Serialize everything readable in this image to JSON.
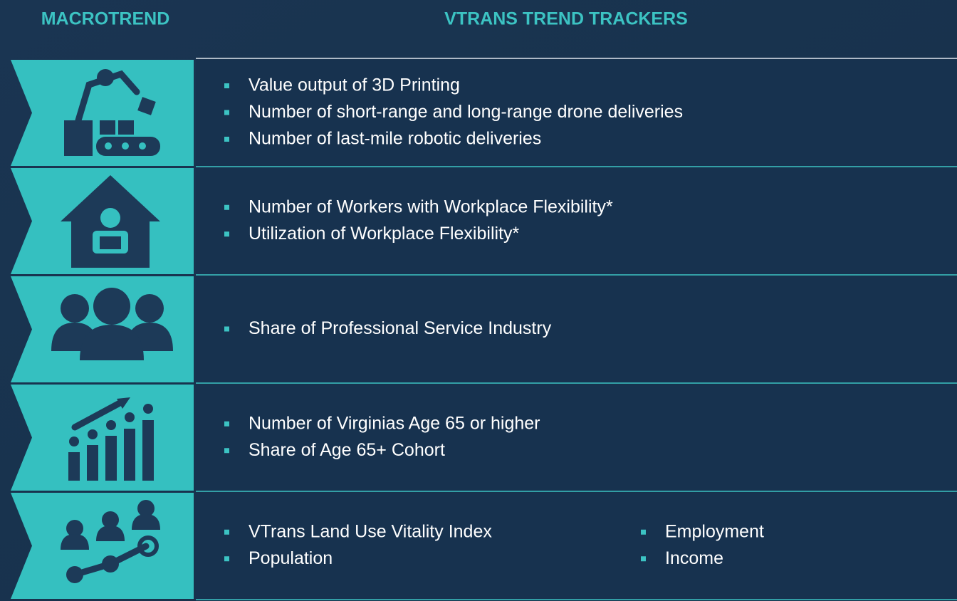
{
  "header": {
    "macrotrend": "MACROTREND",
    "trackers": "VTRANS TREND TRACKERS"
  },
  "rows": [
    {
      "columns": [
        [
          "Value output of 3D Printing",
          "Number of short-range and long-range drone deliveries",
          "Number of last-mile robotic deliveries"
        ]
      ]
    },
    {
      "columns": [
        [
          "Number of Workers with Workplace Flexibility*",
          "Utilization of Workplace Flexibility*"
        ]
      ]
    },
    {
      "columns": [
        [
          "Share of Professional Service Industry"
        ]
      ]
    },
    {
      "columns": [
        [
          "Number of Virginias Age 65 or higher",
          "Share of Age 65+ Cohort"
        ]
      ]
    },
    {
      "columns": [
        [
          "VTrans Land Use Vitality Index",
          "Population"
        ],
        [
          "Employment",
          "Income"
        ]
      ]
    }
  ]
}
